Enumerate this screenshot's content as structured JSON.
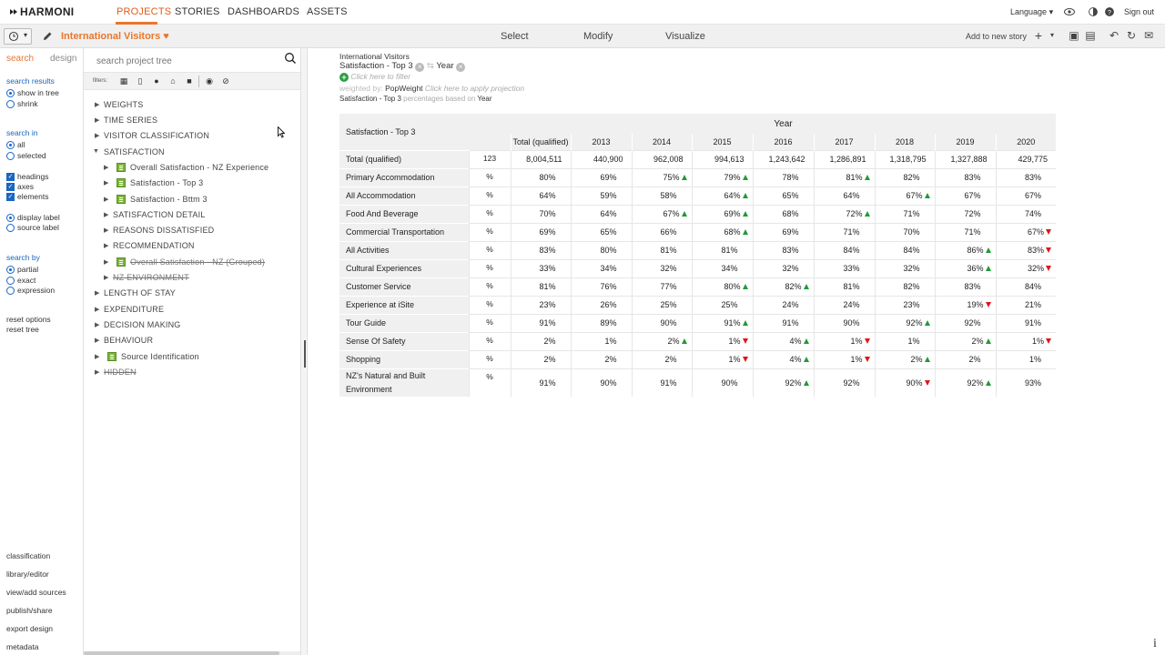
{
  "brand": {
    "name": "HARMONI"
  },
  "nav": {
    "items": [
      "PROJECTS",
      "STORIES",
      "DASHBOARDS",
      "ASSETS"
    ],
    "active": "PROJECTS",
    "language": "Language",
    "signout": "Sign out"
  },
  "toolbar": {
    "project_title": "International Visitors",
    "modes": [
      "Select",
      "Modify",
      "Visualize"
    ],
    "add_to_story": "Add to new story"
  },
  "left": {
    "tabs": [
      "search",
      "design"
    ],
    "search_results_heading": "search results",
    "search_results_opts": [
      "show in tree",
      "shrink"
    ],
    "search_in_heading": "search in",
    "search_in_opts": [
      "all",
      "selected"
    ],
    "check_opts": [
      "headings",
      "axes",
      "elements"
    ],
    "label_opts": [
      "display label",
      "source label"
    ],
    "search_by_heading": "search by",
    "search_by_opts": [
      "partial",
      "exact",
      "expression"
    ],
    "reset_options": "reset options",
    "reset_tree": "reset tree",
    "footer_links": [
      "classification",
      "library/editor",
      "view/add sources",
      "publish/share",
      "export design",
      "metadata"
    ]
  },
  "tree": {
    "search_placeholder": "search project tree",
    "filters_label": "filters:",
    "items": [
      {
        "label": "WEIGHTS"
      },
      {
        "label": "TIME SERIES"
      },
      {
        "label": "VISITOR CLASSIFICATION"
      },
      {
        "label": "SATISFACTION"
      },
      {
        "label": "Overall Satisfaction - NZ Experience"
      },
      {
        "label": "Satisfaction - Top 3"
      },
      {
        "label": "Satisfaction - Bttm 3"
      },
      {
        "label": "SATISFACTION DETAIL"
      },
      {
        "label": "REASONS DISSATISFIED"
      },
      {
        "label": "RECOMMENDATION"
      },
      {
        "label": "Overall Satisfaction - NZ (Grouped)"
      },
      {
        "label": "NZ ENVIRONMENT"
      },
      {
        "label": "LENGTH OF STAY"
      },
      {
        "label": "EXPENDITURE"
      },
      {
        "label": "DECISION MAKING"
      },
      {
        "label": "BEHAVIOUR"
      },
      {
        "label": "Source Identification"
      },
      {
        "label": "HIDDEN"
      }
    ]
  },
  "table_meta": {
    "project": "International Visitors",
    "row_var": "Satisfaction - Top 3",
    "col_var": "Year",
    "filter_hint": "Click here to filter",
    "weighted_prefix": "weighted by:",
    "weight_name": "PopWeight",
    "projection_hint": "Click here to apply projection",
    "pct_base_prefix": "Satisfaction - Top 3",
    "pct_base_mid": "percentages based on",
    "pct_base_var": "Year"
  },
  "table": {
    "corner_label": "Satisfaction - Top 3",
    "group_header": "Year",
    "columns": [
      "Total (qualified)",
      "2013",
      "2014",
      "2015",
      "2016",
      "2017",
      "2018",
      "2019",
      "2020"
    ],
    "rows": [
      {
        "label": "Total (qualified)",
        "unit": "123",
        "values": [
          "8,004,511",
          "440,900",
          "962,008",
          "994,613",
          "1,243,642",
          "1,286,891",
          "1,318,795",
          "1,327,888",
          "429,775"
        ],
        "arrows": [
          "",
          "",
          "",
          "",
          "",
          "",
          "",
          "",
          ""
        ]
      },
      {
        "label": "Primary Accommodation",
        "unit": "%",
        "values": [
          "80%",
          "69%",
          "75%",
          "79%",
          "78%",
          "81%",
          "82%",
          "83%",
          "83%"
        ],
        "arrows": [
          "",
          "",
          "up",
          "up",
          "",
          "up",
          "",
          "",
          ""
        ]
      },
      {
        "label": "All Accommodation",
        "unit": "%",
        "values": [
          "64%",
          "59%",
          "58%",
          "64%",
          "65%",
          "64%",
          "67%",
          "67%",
          "67%"
        ],
        "arrows": [
          "",
          "",
          "",
          "up",
          "",
          "",
          "up",
          "",
          ""
        ]
      },
      {
        "label": "Food And Beverage",
        "unit": "%",
        "values": [
          "70%",
          "64%",
          "67%",
          "69%",
          "68%",
          "72%",
          "71%",
          "72%",
          "74%"
        ],
        "arrows": [
          "",
          "",
          "up",
          "up",
          "",
          "up",
          "",
          "",
          ""
        ]
      },
      {
        "label": "Commercial Transportation",
        "unit": "%",
        "values": [
          "69%",
          "65%",
          "66%",
          "68%",
          "69%",
          "71%",
          "70%",
          "71%",
          "67%"
        ],
        "arrows": [
          "",
          "",
          "",
          "up",
          "",
          "",
          "",
          "",
          "down"
        ]
      },
      {
        "label": "All Activities",
        "unit": "%",
        "values": [
          "83%",
          "80%",
          "81%",
          "81%",
          "83%",
          "84%",
          "84%",
          "86%",
          "83%"
        ],
        "arrows": [
          "",
          "",
          "",
          "",
          "",
          "",
          "",
          "up",
          "down"
        ]
      },
      {
        "label": "Cultural Experiences",
        "unit": "%",
        "values": [
          "33%",
          "34%",
          "32%",
          "34%",
          "32%",
          "33%",
          "32%",
          "36%",
          "32%"
        ],
        "arrows": [
          "",
          "",
          "",
          "",
          "",
          "",
          "",
          "up",
          "down"
        ]
      },
      {
        "label": "Customer Service",
        "unit": "%",
        "values": [
          "81%",
          "76%",
          "77%",
          "80%",
          "82%",
          "81%",
          "82%",
          "83%",
          "84%"
        ],
        "arrows": [
          "",
          "",
          "",
          "up",
          "up",
          "",
          "",
          "",
          ""
        ]
      },
      {
        "label": "Experience at iSite",
        "unit": "%",
        "values": [
          "23%",
          "26%",
          "25%",
          "25%",
          "24%",
          "24%",
          "23%",
          "19%",
          "21%"
        ],
        "arrows": [
          "",
          "",
          "",
          "",
          "",
          "",
          "",
          "down",
          ""
        ]
      },
      {
        "label": "Tour Guide",
        "unit": "%",
        "values": [
          "91%",
          "89%",
          "90%",
          "91%",
          "91%",
          "90%",
          "92%",
          "92%",
          "91%"
        ],
        "arrows": [
          "",
          "",
          "",
          "up",
          "",
          "",
          "up",
          "",
          ""
        ]
      },
      {
        "label": "Sense Of Safety",
        "unit": "%",
        "values": [
          "2%",
          "1%",
          "2%",
          "1%",
          "4%",
          "1%",
          "1%",
          "2%",
          "1%"
        ],
        "arrows": [
          "",
          "",
          "up",
          "down",
          "up",
          "down",
          "",
          "up",
          "down"
        ]
      },
      {
        "label": "Shopping",
        "unit": "%",
        "values": [
          "2%",
          "2%",
          "2%",
          "1%",
          "4%",
          "1%",
          "2%",
          "2%",
          "1%"
        ],
        "arrows": [
          "",
          "",
          "",
          "down",
          "up",
          "down",
          "up",
          "",
          ""
        ]
      },
      {
        "label": "NZ's Natural and Built Environment",
        "unit": "%",
        "values": [
          "91%",
          "90%",
          "91%",
          "90%",
          "92%",
          "92%",
          "90%",
          "92%",
          "93%"
        ],
        "arrows": [
          "",
          "",
          "",
          "",
          "up",
          "",
          "down",
          "up",
          ""
        ]
      }
    ]
  },
  "colors": {
    "accent": "#e8762c",
    "up": "#1f9a36",
    "down": "#e0151b",
    "link": "#1a66c2"
  }
}
